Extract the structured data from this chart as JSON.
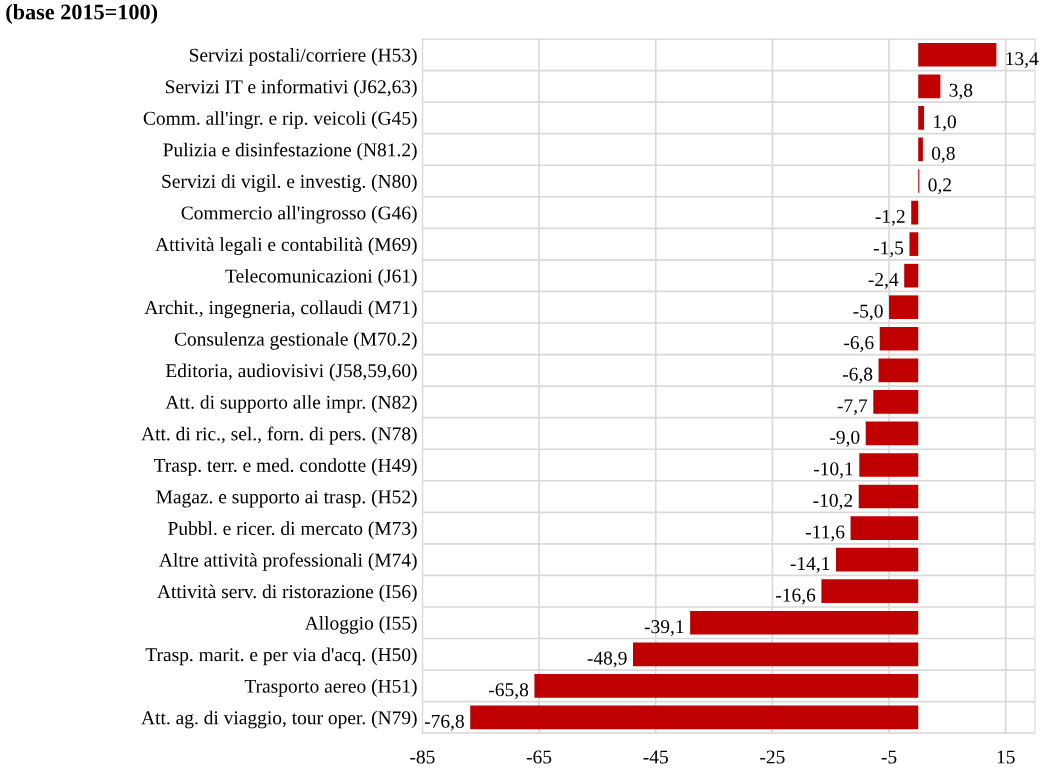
{
  "chart_data": {
    "type": "bar",
    "orientation": "horizontal",
    "title": "(base 2015=100)",
    "categories": [
      "Servizi postali/corriere (H53)",
      "Servizi IT e informativi (J62,63)",
      "Comm. all'ingr. e rip. veicoli (G45)",
      "Pulizia e disinfestazione (N81.2)",
      "Servizi di vigil. e investig. (N80)",
      "Commercio all'ingrosso (G46)",
      "Attività legali e contabilità (M69)",
      "Telecomunicazioni (J61)",
      "Archit., ingegneria, collaudi (M71)",
      "Consulenza gestionale (M70.2)",
      "Editoria, audiovisivi (J58,59,60)",
      "Att. di supporto alle impr. (N82)",
      "Att. di ric., sel., forn. di pers. (N78)",
      "Trasp. terr. e med. condotte (H49)",
      "Magaz. e supporto ai trasp. (H52)",
      "Pubbl. e ricer. di mercato (M73)",
      "Altre attività professionali (M74)",
      "Attività serv. di ristorazione (I56)",
      "Alloggio (I55)",
      "Trasp. marit. e per via d'acq. (H50)",
      "Trasporto aereo (H51)",
      "Att. ag. di viaggio, tour oper. (N79)"
    ],
    "values": [
      13.4,
      3.8,
      1.0,
      0.8,
      0.2,
      -1.2,
      -1.5,
      -2.4,
      -5.0,
      -6.6,
      -6.8,
      -7.7,
      -9.0,
      -10.1,
      -10.2,
      -11.6,
      -14.1,
      -16.6,
      -39.1,
      -48.9,
      -65.8,
      -76.8
    ],
    "value_labels": [
      "13,4",
      "3,8",
      "1,0",
      "0,8",
      "0,2",
      "-1,2",
      "-1,5",
      "-2,4",
      "-5,0",
      "-6,6",
      "-6,8",
      "-7,7",
      "-9,0",
      "-10,1",
      "-10,2",
      "-11,6",
      "-14,1",
      "-16,6",
      "-39,1",
      "-48,9",
      "-65,8",
      "-76,8"
    ],
    "color": "#c00000",
    "xlim": [
      -85,
      20
    ],
    "xticks": [
      -85,
      -65,
      -45,
      -25,
      -5,
      15
    ],
    "grid": true
  }
}
